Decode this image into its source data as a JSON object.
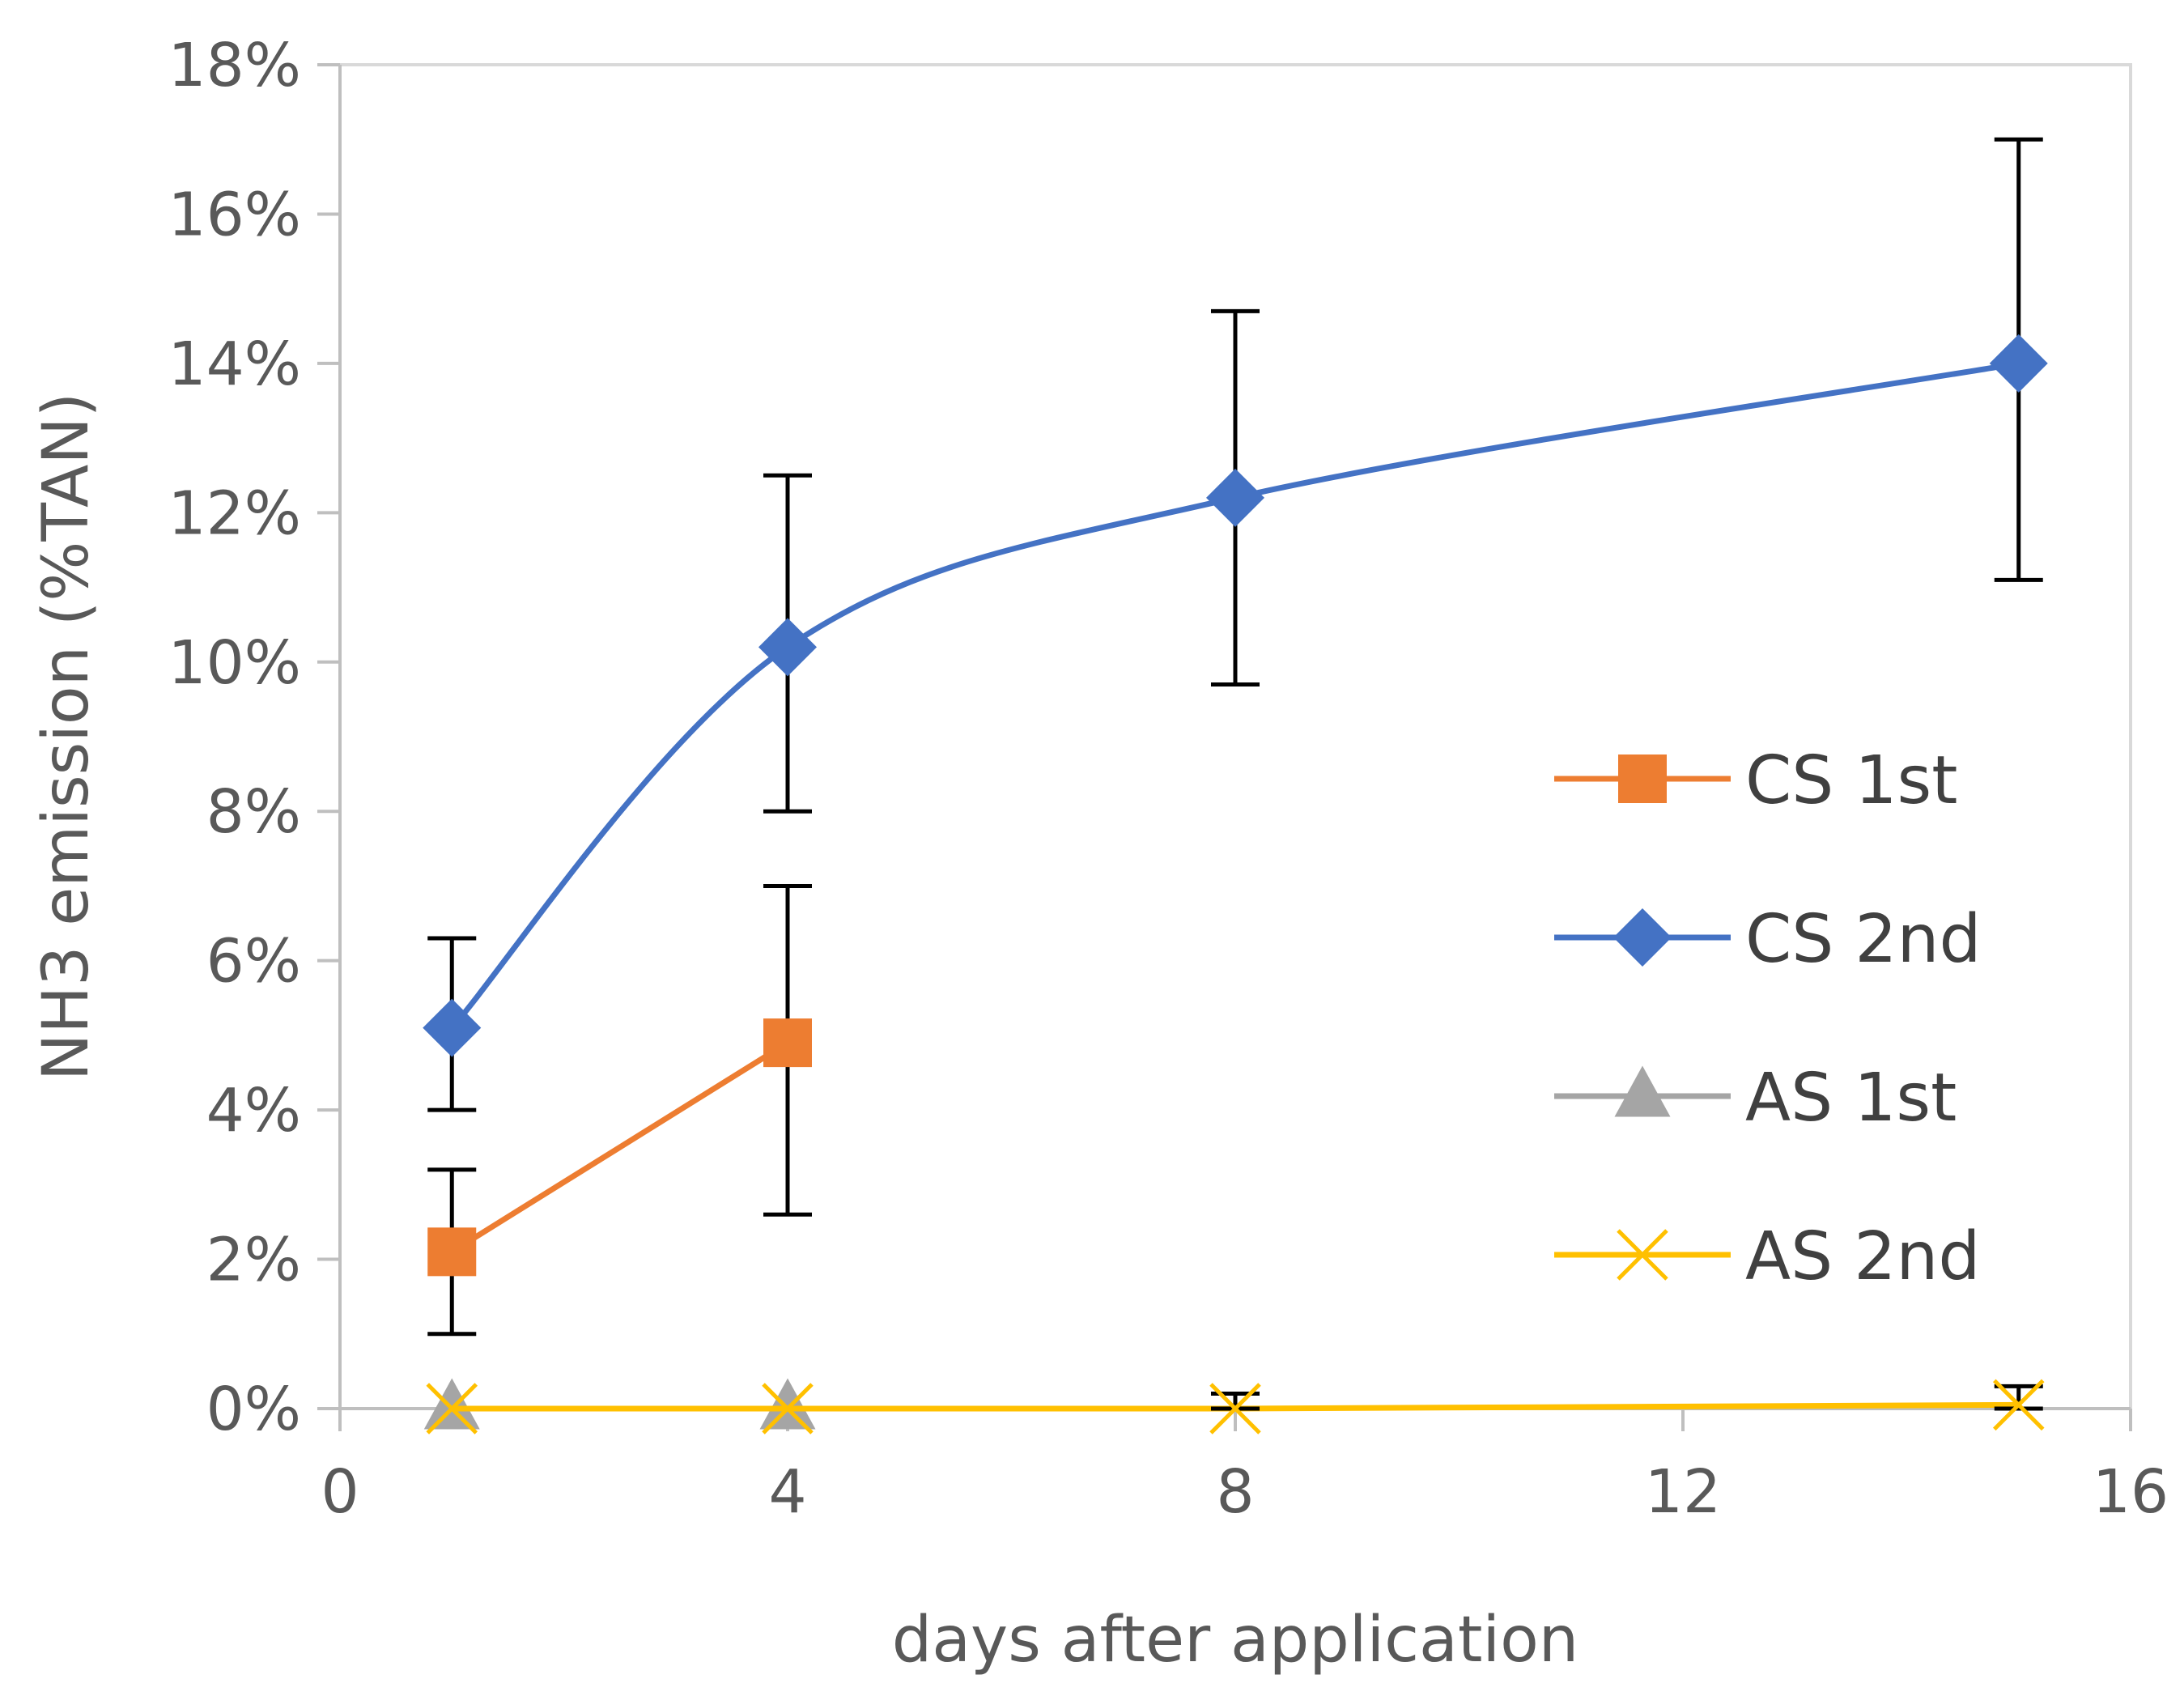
{
  "chart_data": {
    "type": "line",
    "title": "",
    "xlabel": "days after application",
    "ylabel": "NH3 emission (%TAN)",
    "xlim": [
      0,
      16
    ],
    "ylim": [
      0,
      18
    ],
    "x_ticks": [
      0,
      4,
      8,
      12,
      16
    ],
    "x_tick_labels": [
      "0",
      "4",
      "8",
      "12",
      "16"
    ],
    "y_ticks": [
      0,
      2,
      4,
      6,
      8,
      10,
      12,
      14,
      16,
      18
    ],
    "y_tick_labels": [
      "0%",
      "2%",
      "4%",
      "6%",
      "8%",
      "10%",
      "12%",
      "14%",
      "16%",
      "18%"
    ],
    "grid": false,
    "legend_position": "right",
    "series": [
      {
        "name": "CS 1st",
        "color": "#ED7D31",
        "marker": "square",
        "smooth": false,
        "x": [
          1,
          4
        ],
        "y": [
          2.1,
          4.9
        ],
        "error_low": [
          1.0,
          2.6
        ],
        "error_high": [
          3.2,
          7.0
        ]
      },
      {
        "name": "CS 2nd",
        "color": "#4472C4",
        "marker": "diamond",
        "smooth": true,
        "x": [
          1,
          4,
          8,
          15
        ],
        "y": [
          5.1,
          10.2,
          12.2,
          14.0
        ],
        "error_low": [
          4.0,
          8.0,
          9.7,
          11.1
        ],
        "error_high": [
          6.3,
          12.5,
          14.7,
          17.0
        ]
      },
      {
        "name": "AS 1st",
        "color": "#A5A5A5",
        "marker": "triangle",
        "smooth": false,
        "x": [
          1,
          4
        ],
        "y": [
          0,
          0
        ],
        "error_low": [
          0,
          0
        ],
        "error_high": [
          0,
          0
        ]
      },
      {
        "name": "AS 2nd",
        "color": "#FFC000",
        "marker": "x",
        "smooth": false,
        "x": [
          1,
          4,
          8,
          15
        ],
        "y": [
          0,
          0,
          0,
          0.05
        ],
        "error_low": [
          0,
          0,
          0,
          0
        ],
        "error_high": [
          0,
          0,
          0.2,
          0.3
        ]
      }
    ]
  }
}
